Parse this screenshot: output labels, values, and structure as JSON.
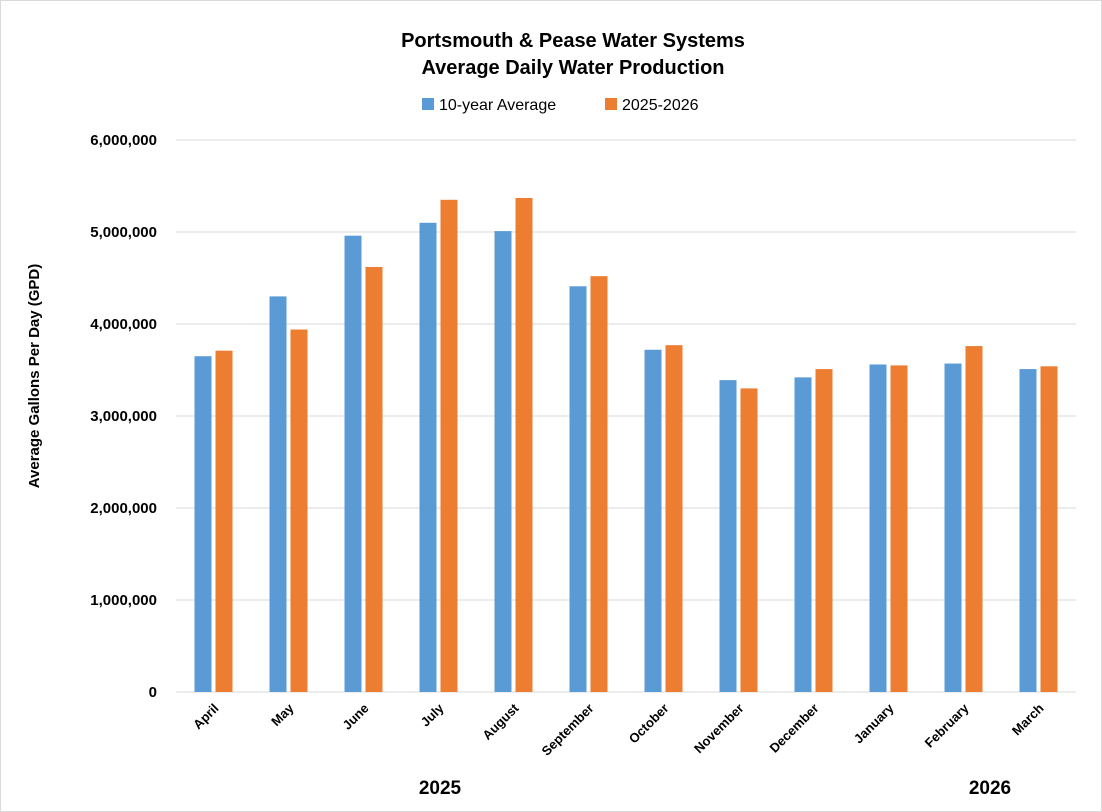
{
  "chart_data": {
    "type": "bar",
    "title_line1": "Portsmouth & Pease Water Systems",
    "title_line2": "Average Daily Water Production",
    "ylabel": "Average Gallons Per Day (GPD)",
    "xlabel": "",
    "ylim": [
      0,
      6000000
    ],
    "yticks": [
      0,
      1000000,
      2000000,
      3000000,
      4000000,
      5000000,
      6000000
    ],
    "ytick_labels": [
      "0",
      "1,000,000",
      "2,000,000",
      "3,000,000",
      "4,000,000",
      "5,000,000",
      "6,000,000"
    ],
    "grid": true,
    "legend_position": "top-center",
    "categories": [
      "April",
      "May",
      "June",
      "July",
      "August",
      "September",
      "October",
      "November",
      "December",
      "January",
      "February",
      "March"
    ],
    "series": [
      {
        "name": "10-year Average",
        "color": "#5b9bd5",
        "values": [
          3650000,
          4300000,
          4960000,
          5100000,
          5010000,
          4410000,
          3720000,
          3390000,
          3420000,
          3560000,
          3570000,
          3510000
        ]
      },
      {
        "name": "2025-2026",
        "color": "#ed7d31",
        "values": [
          3710000,
          3940000,
          4620000,
          5350000,
          5370000,
          4520000,
          3770000,
          3300000,
          3510000,
          3550000,
          3760000,
          3540000
        ]
      }
    ],
    "year_labels": [
      "2025",
      "2026"
    ]
  }
}
